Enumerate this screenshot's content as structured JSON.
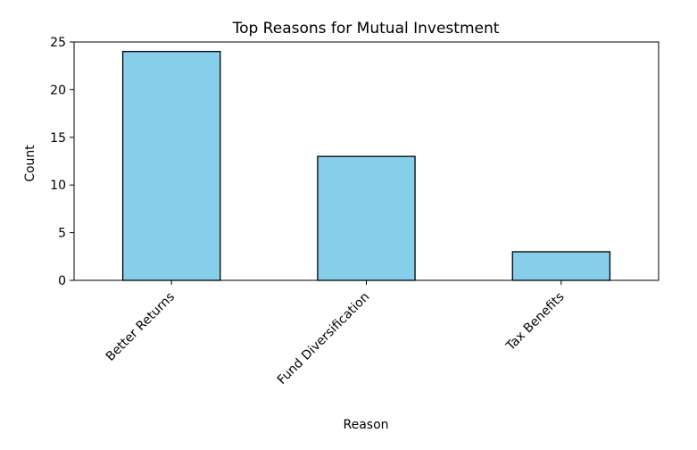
{
  "colors": {
    "bar_fill": "#87CEEB",
    "bar_edge": "#000000",
    "axes": "#000000",
    "background": "#ffffff"
  },
  "chart_data": {
    "type": "bar",
    "title": "Top Reasons for Mutual Investment",
    "xlabel": "Reason",
    "ylabel": "Count",
    "categories": [
      "Better Returns",
      "Fund Diversification",
      "Tax Benefits"
    ],
    "values": [
      24,
      13,
      3
    ],
    "ylim": [
      0,
      25
    ],
    "yticks": [
      0,
      5,
      10,
      15,
      20,
      25
    ],
    "grid": false,
    "legend": "none",
    "xtick_rotation_deg": 45
  }
}
